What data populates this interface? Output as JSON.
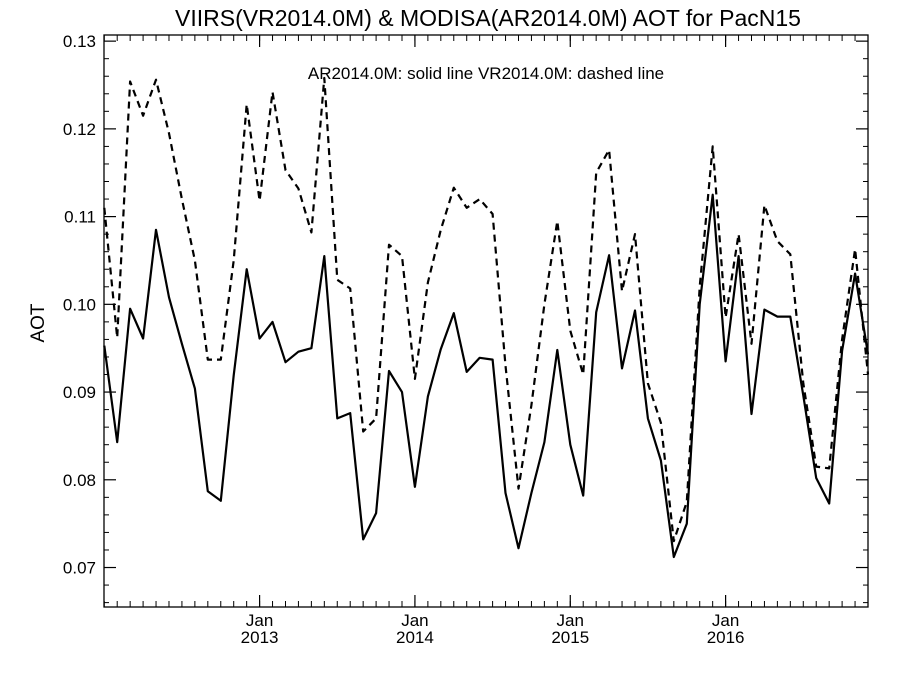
{
  "chart_data": {
    "type": "line",
    "title": "VIIRS(VR2014.0M) & MODISA(AR2014.0M)  AOT for PacN15",
    "legend_text": "AR2014.0M: solid line   VR2014.0M: dashed line",
    "ylabel": "AOT",
    "xlabel": "",
    "ylim": [
      0.0655,
      0.1307
    ],
    "yticks": [
      0.07,
      0.08,
      0.09,
      0.1,
      0.11,
      0.12,
      0.13
    ],
    "ytick_labels": [
      "0.07",
      "0.08",
      "0.09",
      "0.10",
      "0.11",
      "0.12",
      "0.13"
    ],
    "xlim": [
      "2012-01",
      "2016-12"
    ],
    "xticks": [
      {
        "date": "2013-01",
        "month": "Jan",
        "year": "2013"
      },
      {
        "date": "2014-01",
        "month": "Jan",
        "year": "2014"
      },
      {
        "date": "2015-01",
        "month": "Jan",
        "year": "2015"
      },
      {
        "date": "2016-01",
        "month": "Jan",
        "year": "2016"
      }
    ],
    "x": [
      "2012-01",
      "2012-02",
      "2012-03",
      "2012-04",
      "2012-05",
      "2012-06",
      "2012-07",
      "2012-08",
      "2012-09",
      "2012-10",
      "2012-11",
      "2012-12",
      "2013-01",
      "2013-02",
      "2013-03",
      "2013-04",
      "2013-05",
      "2013-06",
      "2013-07",
      "2013-08",
      "2013-09",
      "2013-10",
      "2013-11",
      "2013-12",
      "2014-01",
      "2014-02",
      "2014-03",
      "2014-04",
      "2014-05",
      "2014-06",
      "2014-07",
      "2014-08",
      "2014-09",
      "2014-10",
      "2014-11",
      "2014-12",
      "2015-01",
      "2015-02",
      "2015-03",
      "2015-04",
      "2015-05",
      "2015-06",
      "2015-07",
      "2015-08",
      "2015-09",
      "2015-10",
      "2015-11",
      "2015-12",
      "2016-01",
      "2016-02",
      "2016-03",
      "2016-04",
      "2016-05",
      "2016-06",
      "2016-07",
      "2016-08",
      "2016-09",
      "2016-10",
      "2016-11",
      "2016-12"
    ],
    "series": [
      {
        "name": "AR2014.0M",
        "style": "solid",
        "color": "#000000",
        "values": [
          0.0953,
          0.0843,
          0.0995,
          0.0961,
          0.1085,
          0.1008,
          0.0955,
          0.0904,
          0.0787,
          0.0776,
          0.0919,
          0.104,
          0.0961,
          0.098,
          0.0934,
          0.0946,
          0.095,
          0.1055,
          0.087,
          0.0876,
          0.0732,
          0.0762,
          0.0924,
          0.09,
          0.0792,
          0.0895,
          0.0949,
          0.099,
          0.0923,
          0.0939,
          0.0937,
          0.0785,
          0.0722,
          0.0785,
          0.0843,
          0.0948,
          0.084,
          0.0782,
          0.0991,
          0.1056,
          0.0927,
          0.0993,
          0.087,
          0.0822,
          0.0712,
          0.075,
          0.1,
          0.1125,
          0.0935,
          0.1055,
          0.0875,
          0.0994,
          0.0986,
          0.0986,
          0.0896,
          0.0802,
          0.0773,
          0.0947,
          0.1035,
          0.0943
        ]
      },
      {
        "name": "VR2014.0M",
        "style": "dashed",
        "color": "#000000",
        "values": [
          0.111,
          0.0962,
          0.1254,
          0.1215,
          0.1256,
          0.1195,
          0.112,
          0.105,
          0.0937,
          0.0937,
          0.105,
          0.1228,
          0.1118,
          0.1242,
          0.1153,
          0.1132,
          0.1082,
          0.1258,
          0.1028,
          0.1018,
          0.0855,
          0.087,
          0.1068,
          0.1055,
          0.0915,
          0.1025,
          0.1085,
          0.1133,
          0.111,
          0.112,
          0.1103,
          0.093,
          0.079,
          0.0885,
          0.1,
          0.1095,
          0.097,
          0.092,
          0.115,
          0.1176,
          0.1015,
          0.108,
          0.091,
          0.0865,
          0.073,
          0.0775,
          0.102,
          0.118,
          0.0985,
          0.108,
          0.0955,
          0.1113,
          0.1072,
          0.1057,
          0.091,
          0.0815,
          0.0813,
          0.096,
          0.1063,
          0.092
        ]
      }
    ],
    "grid": false,
    "legend_position": "top-center"
  }
}
